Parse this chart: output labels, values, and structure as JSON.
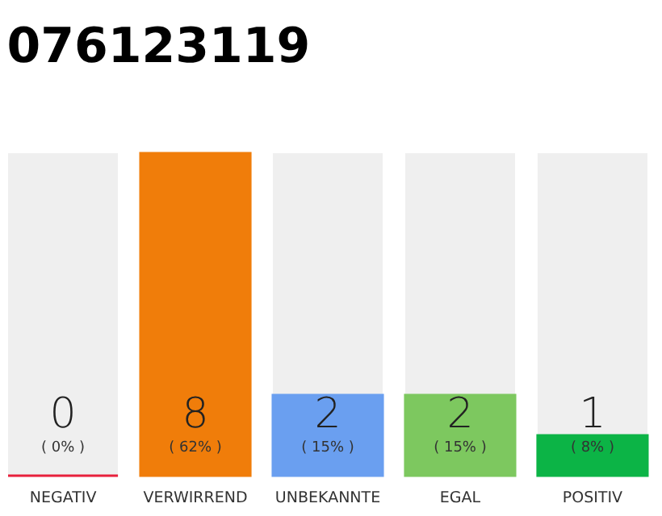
{
  "chart_data": {
    "type": "bar",
    "title": "076123119",
    "categories": [
      "NEGATIV",
      "VERWIRREND",
      "UNBEKANNTE",
      "EGAL",
      "POSITIV"
    ],
    "values": [
      0,
      8,
      2,
      2,
      1
    ],
    "colors": [
      "#e8203c",
      "#f07d0a",
      "#6a9ff0",
      "#7dc85f",
      "#0cb446"
    ],
    "ylim": [
      0,
      8
    ],
    "data_labels": true,
    "annotations": [
      "( 0% )",
      "( 62% )",
      "( 15% )",
      "( 15% )",
      "( 8% )"
    ]
  }
}
